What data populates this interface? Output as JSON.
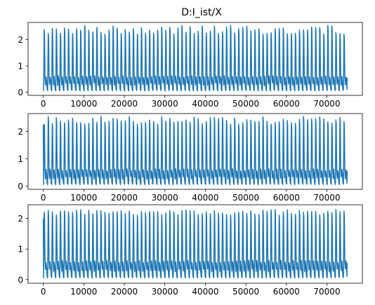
{
  "title": "D:I_ist/X",
  "line_color": "#1f77b4",
  "chart_data": [
    {
      "type": "line",
      "xlim": [
        -3750,
        78750
      ],
      "ylim": [
        -0.12,
        2.65
      ],
      "xticks": [
        0,
        10000,
        20000,
        30000,
        40000,
        50000,
        60000,
        70000
      ],
      "yticks": [
        0,
        1,
        2
      ],
      "x_range": [
        0,
        75000
      ],
      "cycles": 75,
      "peak_min": 2.2,
      "peak_max": 2.55,
      "trough": 0.05,
      "mid_level": 0.55,
      "start_value": 0.05
    },
    {
      "type": "line",
      "xlim": [
        -3750,
        78750
      ],
      "ylim": [
        -0.12,
        2.65
      ],
      "xticks": [
        0,
        10000,
        20000,
        30000,
        40000,
        50000,
        60000,
        70000
      ],
      "yticks": [
        0,
        1,
        2
      ],
      "x_range": [
        0,
        75000
      ],
      "cycles": 75,
      "peak_min": 2.25,
      "peak_max": 2.55,
      "trough": 0.05,
      "mid_level": 0.55,
      "start_value": 2.25
    },
    {
      "type": "line",
      "xlim": [
        -3750,
        78750
      ],
      "ylim": [
        -0.12,
        2.45
      ],
      "xticks": [
        0,
        10000,
        20000,
        30000,
        40000,
        50000,
        60000,
        70000
      ],
      "yticks": [
        0,
        1,
        2
      ],
      "x_range": [
        0,
        75000
      ],
      "cycles": 75,
      "peak_min": 2.1,
      "peak_max": 2.3,
      "trough": 0.05,
      "mid_level": 0.55,
      "start_value": 2.0
    }
  ]
}
